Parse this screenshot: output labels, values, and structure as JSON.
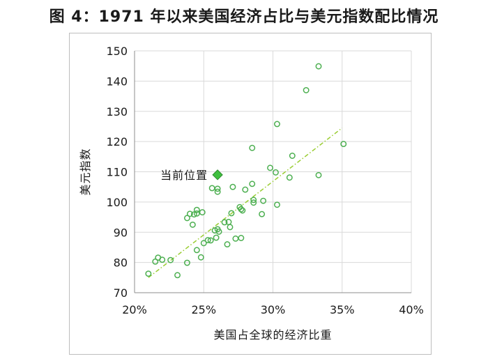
{
  "title": "图 4：1971 年以来美国经济占比与美元指数配比情况",
  "chart_data": {
    "type": "scatter",
    "xlabel": "美国占全球的经济比重",
    "ylabel": "美元指数",
    "xlim": [
      20,
      40
    ],
    "ylim": [
      70,
      150
    ],
    "xticks": [
      "20%",
      "25%",
      "30%",
      "35%",
      "40%"
    ],
    "yticks": [
      "70",
      "80",
      "90",
      "100",
      "110",
      "120",
      "130",
      "140",
      "150"
    ],
    "grid": true,
    "colors": {
      "points": "#4caf50",
      "trend": "#9acd32",
      "current": "#3fbf3f"
    },
    "points": [
      {
        "x": 21.0,
        "y": 76.3
      },
      {
        "x": 21.5,
        "y": 80.3
      },
      {
        "x": 21.7,
        "y": 81.6
      },
      {
        "x": 22.0,
        "y": 80.9
      },
      {
        "x": 22.6,
        "y": 80.8
      },
      {
        "x": 23.1,
        "y": 75.8
      },
      {
        "x": 23.8,
        "y": 79.9
      },
      {
        "x": 23.8,
        "y": 94.7
      },
      {
        "x": 24.0,
        "y": 96.1
      },
      {
        "x": 24.2,
        "y": 92.5
      },
      {
        "x": 24.3,
        "y": 95.9
      },
      {
        "x": 24.5,
        "y": 97.4
      },
      {
        "x": 24.5,
        "y": 96.2
      },
      {
        "x": 24.5,
        "y": 84.1
      },
      {
        "x": 24.8,
        "y": 81.7
      },
      {
        "x": 24.9,
        "y": 96.6
      },
      {
        "x": 25.0,
        "y": 86.4
      },
      {
        "x": 25.3,
        "y": 87.4
      },
      {
        "x": 25.5,
        "y": 87.3
      },
      {
        "x": 25.6,
        "y": 104.6
      },
      {
        "x": 25.8,
        "y": 90.6
      },
      {
        "x": 25.9,
        "y": 88.2
      },
      {
        "x": 26.0,
        "y": 104.4
      },
      {
        "x": 26.0,
        "y": 103.4
      },
      {
        "x": 26.0,
        "y": 91.0
      },
      {
        "x": 26.1,
        "y": 90.2
      },
      {
        "x": 26.5,
        "y": 93.3
      },
      {
        "x": 26.7,
        "y": 86.0
      },
      {
        "x": 26.8,
        "y": 93.4
      },
      {
        "x": 26.9,
        "y": 91.7
      },
      {
        "x": 27.0,
        "y": 96.3
      },
      {
        "x": 27.1,
        "y": 105.0
      },
      {
        "x": 27.3,
        "y": 87.9
      },
      {
        "x": 27.6,
        "y": 98.3
      },
      {
        "x": 27.7,
        "y": 88.1
      },
      {
        "x": 27.7,
        "y": 97.6
      },
      {
        "x": 27.8,
        "y": 97.2
      },
      {
        "x": 28.0,
        "y": 104.1
      },
      {
        "x": 28.5,
        "y": 117.9
      },
      {
        "x": 28.5,
        "y": 106.0
      },
      {
        "x": 28.6,
        "y": 100.7
      },
      {
        "x": 28.6,
        "y": 99.8
      },
      {
        "x": 29.2,
        "y": 96.0
      },
      {
        "x": 29.3,
        "y": 100.4
      },
      {
        "x": 29.8,
        "y": 111.3
      },
      {
        "x": 30.2,
        "y": 109.8
      },
      {
        "x": 30.3,
        "y": 125.8
      },
      {
        "x": 30.3,
        "y": 99.1
      },
      {
        "x": 31.2,
        "y": 108.1
      },
      {
        "x": 31.4,
        "y": 115.3
      },
      {
        "x": 32.4,
        "y": 137.0
      },
      {
        "x": 33.3,
        "y": 144.9
      },
      {
        "x": 33.3,
        "y": 108.9
      },
      {
        "x": 35.1,
        "y": 119.2
      }
    ],
    "trendline": {
      "x": [
        21.0,
        35.0
      ],
      "y": [
        75.0,
        124.5
      ]
    },
    "current_position": {
      "label": "当前位置",
      "x": 26.0,
      "y": 109.0
    }
  }
}
